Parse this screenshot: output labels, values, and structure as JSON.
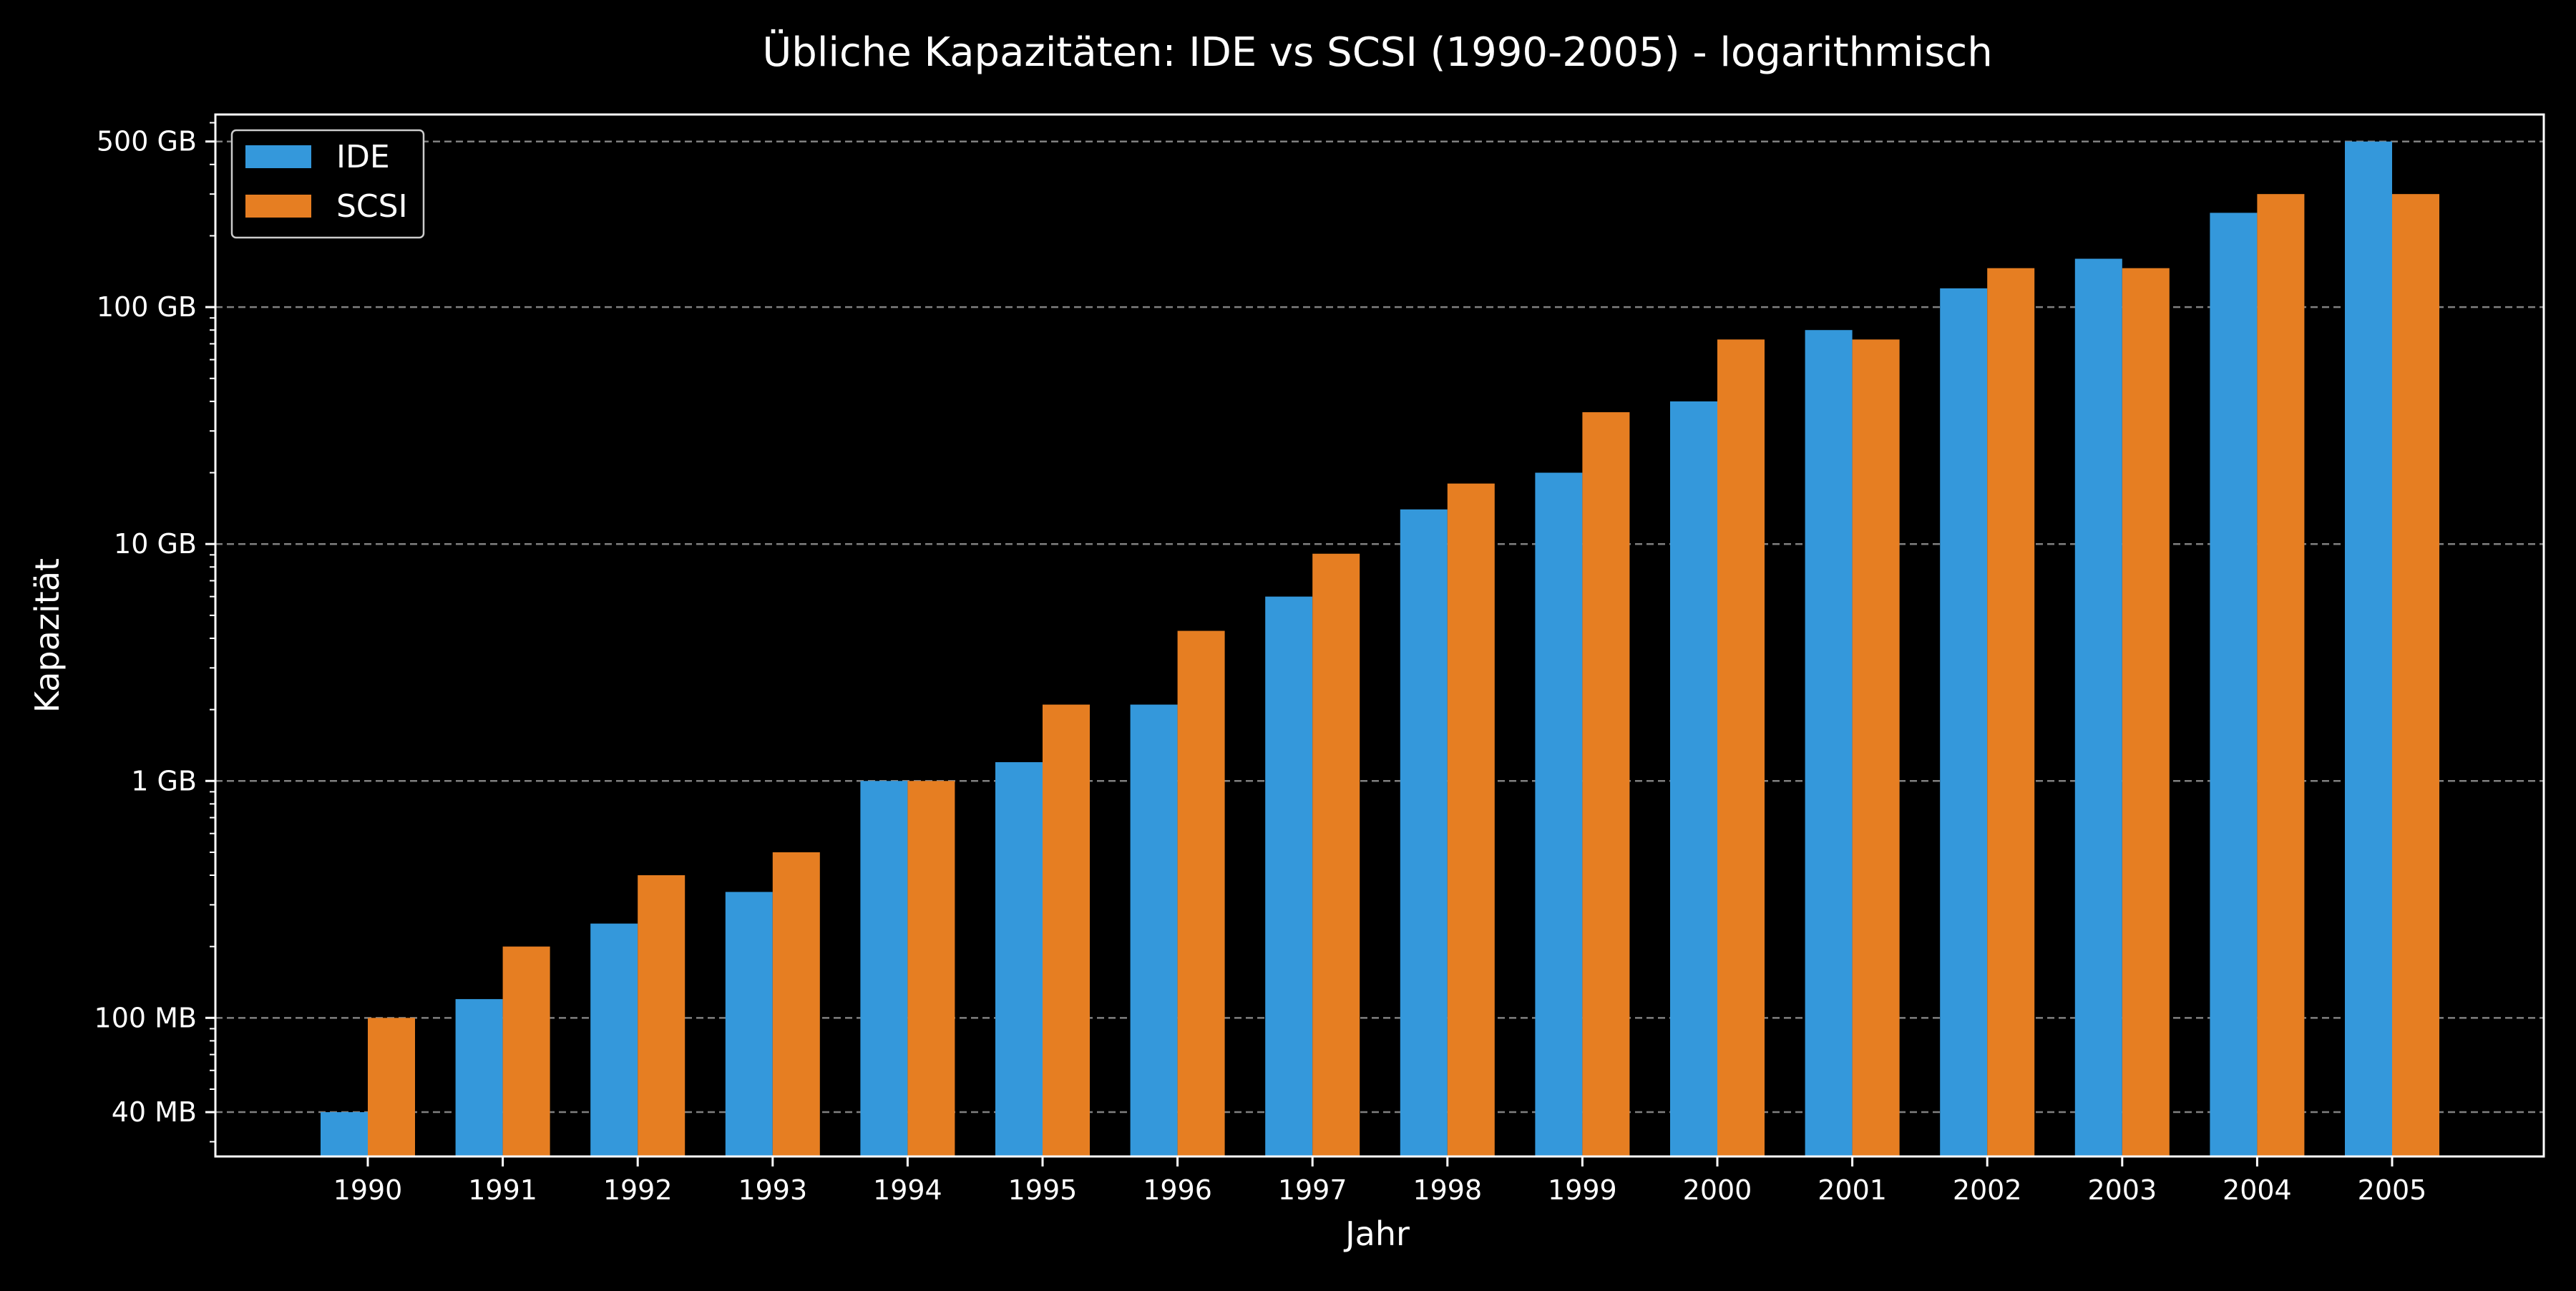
{
  "chart_data": {
    "type": "bar",
    "title": "Übliche Kapazitäten: IDE vs SCSI (1990-2005) - logarithmisch",
    "xlabel": "Jahr",
    "ylabel": "Kapazität",
    "y_scale": "log",
    "y_unit": "MB",
    "ylim": [
      26,
      650000
    ],
    "grid": "horizontal dashed",
    "legend_position": "top-left",
    "categories": [
      "1990",
      "1991",
      "1992",
      "1993",
      "1994",
      "1995",
      "1996",
      "1997",
      "1998",
      "1999",
      "2000",
      "2001",
      "2002",
      "2003",
      "2004",
      "2005"
    ],
    "series": [
      {
        "name": "IDE",
        "color": "#3498db",
        "values": [
          40,
          120,
          250,
          340,
          1000,
          1200,
          2100,
          6000,
          14000,
          20000,
          40000,
          80000,
          120000,
          160000,
          250000,
          500000
        ]
      },
      {
        "name": "SCSI",
        "color": "#e67e22",
        "values": [
          100,
          200,
          400,
          500,
          1000,
          2100,
          4300,
          9100,
          18000,
          36000,
          73000,
          73000,
          146000,
          146000,
          300000,
          300000
        ]
      }
    ],
    "y_ticks": [
      {
        "value": 40,
        "label": "40 MB"
      },
      {
        "value": 100,
        "label": "100 MB"
      },
      {
        "value": 1000,
        "label": "1 GB"
      },
      {
        "value": 10000,
        "label": "10 GB"
      },
      {
        "value": 100000,
        "label": "100 GB"
      },
      {
        "value": 500000,
        "label": "500 GB"
      }
    ],
    "colors": {
      "background": "#000000",
      "axes": "#ffffff",
      "grid": "#808080",
      "text": "#ffffff"
    }
  }
}
